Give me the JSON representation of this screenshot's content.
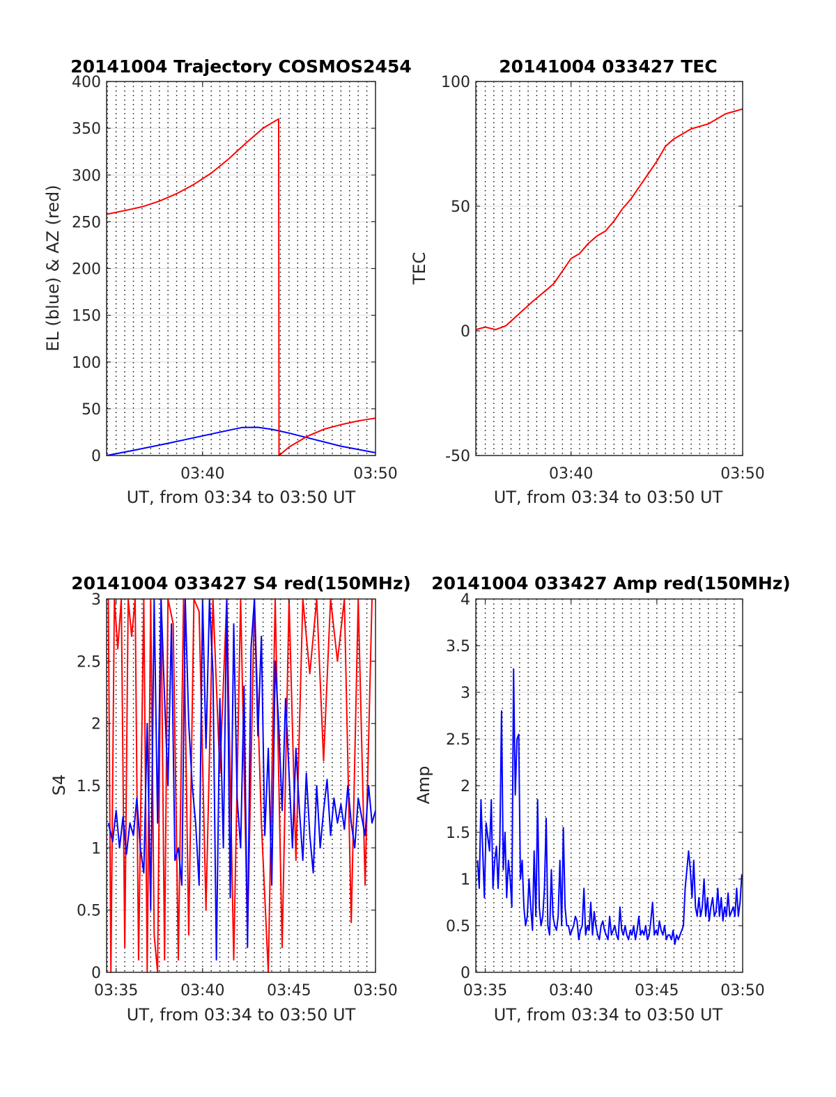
{
  "colors": {
    "el": "#0000ff",
    "az": "#ff0000",
    "tec": "#ff0000",
    "s4_red": "#ff0000",
    "s4_blue": "#0000ff",
    "amp": "#0000ff",
    "grid_h": "#d9d9d9",
    "grid_v": "#000000",
    "axis": "#262626"
  },
  "chart_data": [
    {
      "id": "trajectory",
      "type": "line",
      "title": "20141004 Trajectory COSMOS2454",
      "xlabel": "UT, from 03:34 to 03:50 UT",
      "ylabel": "EL (blue) & AZ (red)",
      "xlim": [
        34.45,
        50
      ],
      "ylim": [
        0,
        400
      ],
      "xticks": [
        40,
        50
      ],
      "xtick_labels": [
        "03:40",
        "03:50"
      ],
      "yticks": [
        0,
        50,
        100,
        150,
        200,
        250,
        300,
        350,
        400
      ],
      "ytick_labels": [
        "0",
        "50",
        "100",
        "150",
        "200",
        "250",
        "300",
        "350",
        "400"
      ],
      "minute_gridlines": [
        34.5,
        35,
        35.5,
        36,
        36.5,
        37,
        37.5,
        38,
        38.5,
        39,
        39.5,
        40,
        40.5,
        41,
        41.5,
        42,
        42.5,
        43,
        43.5,
        44,
        44.5,
        45,
        45.5,
        46,
        46.5,
        47,
        47.5,
        48,
        48.5,
        49,
        49.5
      ],
      "grid": true,
      "series": [
        {
          "name": "EL (blue)",
          "color": "#0000ff",
          "x": [
            34.45,
            36,
            38,
            40,
            41.5,
            42.3,
            43.2,
            44,
            45,
            46.5,
            48,
            50
          ],
          "y": [
            0,
            5.5,
            13,
            21,
            27,
            30,
            30.2,
            28,
            24,
            17,
            10,
            3
          ]
        },
        {
          "name": "AZ (red)",
          "color": "#ff0000",
          "x": [
            34.45,
            35.5,
            36.5,
            37.5,
            38.5,
            39.5,
            40.5,
            41.5,
            42.5,
            43.5,
            44.4,
            44.42,
            45,
            46,
            47,
            48,
            49,
            50
          ],
          "y": [
            258,
            262,
            266,
            272,
            280,
            290,
            302,
            317,
            334,
            350,
            360,
            0,
            9,
            20,
            28,
            33,
            37,
            40
          ]
        }
      ]
    },
    {
      "id": "tec",
      "type": "line",
      "title": "20141004 033427 TEC",
      "xlabel": "UT, from 03:34 to 03:50 UT",
      "ylabel": "TEC",
      "xlim": [
        34.45,
        50
      ],
      "ylim": [
        -50,
        100
      ],
      "xticks": [
        40,
        50
      ],
      "xtick_labels": [
        "03:40",
        "03:50"
      ],
      "yticks": [
        -50,
        0,
        50,
        100
      ],
      "ytick_labels": [
        "-50",
        "0",
        "50",
        "100"
      ],
      "minute_gridlines": [
        34.5,
        35,
        35.5,
        36,
        36.5,
        37,
        37.5,
        38,
        38.5,
        39,
        39.5,
        40,
        40.5,
        41,
        41.5,
        42,
        42.5,
        43,
        43.5,
        44,
        44.5,
        45,
        45.5,
        46,
        46.5,
        47,
        47.5,
        48,
        48.5,
        49,
        49.5
      ],
      "grid": true,
      "series": [
        {
          "name": "TEC",
          "color": "#ff0000",
          "x": [
            34.45,
            35,
            35.6,
            36.2,
            37,
            37.8,
            38.5,
            39,
            39.5,
            40,
            40.5,
            41,
            41.5,
            42,
            42.5,
            43,
            43.5,
            44,
            44.5,
            45,
            45.5,
            46,
            46.5,
            47,
            47.5,
            48,
            48.5,
            49,
            49.5,
            50
          ],
          "y": [
            0.5,
            1.5,
            0.5,
            2,
            7,
            12,
            16,
            19,
            24,
            29,
            31,
            35,
            38,
            40,
            44,
            49,
            53,
            58,
            63,
            68,
            74,
            77,
            79,
            81,
            82,
            83,
            85,
            87,
            88,
            89
          ]
        }
      ]
    },
    {
      "id": "s4",
      "type": "line",
      "title": "20141004 033427 S4 red(150MHz)",
      "xlabel": "UT, from 03:34 to 03:50 UT",
      "ylabel": "S4",
      "xlim": [
        34.45,
        50
      ],
      "ylim": [
        0,
        3
      ],
      "xticks": [
        35,
        40,
        45,
        50
      ],
      "xtick_labels": [
        "03:35",
        "03:40",
        "03:45",
        "03:50"
      ],
      "yticks": [
        0,
        0.5,
        1,
        1.5,
        2,
        2.5,
        3
      ],
      "ytick_labels": [
        "0",
        "0.5",
        "1",
        "1.5",
        "2",
        "2.5",
        "3"
      ],
      "minute_gridlines": [
        34.5,
        35,
        35.5,
        36,
        36.5,
        37,
        37.5,
        38,
        38.5,
        39,
        39.5,
        40,
        40.5,
        41,
        41.5,
        42,
        42.5,
        43,
        43.5,
        44,
        44.5,
        45,
        45.5,
        46,
        46.5,
        47,
        47.5,
        48,
        48.5,
        49,
        49.5
      ],
      "grid": true,
      "series": [
        {
          "name": "red",
          "color": "#ff0000",
          "x": [
            34.55,
            34.7,
            34.9,
            35.1,
            35.3,
            35.5,
            35.7,
            35.9,
            36.1,
            36.3,
            36.6,
            36.8,
            37.0,
            37.2,
            37.4,
            37.6,
            37.8,
            38.0,
            38.3,
            38.6,
            38.9,
            39.2,
            39.5,
            39.8,
            40.2,
            40.6,
            41.0,
            41.4,
            41.8,
            42.2,
            42.6,
            43.0,
            43.4,
            43.8,
            44.2,
            44.6,
            45.0,
            45.4,
            45.8,
            46.2,
            46.6,
            47.0,
            47.4,
            47.8,
            48.2,
            48.6,
            49.0,
            49.4,
            49.8
          ],
          "y": [
            3,
            0,
            3,
            2.6,
            3,
            0.2,
            3,
            2.7,
            3,
            0.1,
            3,
            0,
            3,
            0.3,
            0,
            3,
            0.1,
            3,
            2.8,
            0.1,
            3,
            0.3,
            3,
            2.9,
            0.5,
            3,
            1.6,
            3,
            0.1,
            3,
            0.3,
            3,
            1.2,
            0,
            3,
            0.2,
            3,
            0.9,
            3,
            2.4,
            3,
            1.7,
            3,
            2.5,
            3,
            0.4,
            3,
            0.7,
            3
          ]
        },
        {
          "name": "blue",
          "color": "#0000ff",
          "x": [
            34.55,
            34.8,
            35.0,
            35.2,
            35.4,
            35.6,
            35.8,
            36.0,
            36.2,
            36.4,
            36.6,
            36.8,
            37.0,
            37.2,
            37.4,
            37.6,
            37.8,
            38.0,
            38.2,
            38.4,
            38.6,
            38.8,
            39.0,
            39.2,
            39.4,
            39.6,
            39.8,
            40.0,
            40.2,
            40.4,
            40.6,
            40.8,
            41.0,
            41.2,
            41.4,
            41.6,
            41.8,
            42.0,
            42.2,
            42.4,
            42.6,
            42.8,
            43.0,
            43.2,
            43.4,
            43.6,
            43.8,
            44.0,
            44.2,
            44.4,
            44.6,
            44.8,
            45.0,
            45.2,
            45.4,
            45.6,
            45.8,
            46.0,
            46.2,
            46.4,
            46.6,
            46.8,
            47.0,
            47.2,
            47.4,
            47.6,
            47.8,
            48.0,
            48.2,
            48.4,
            48.6,
            48.8,
            49.0,
            49.2,
            49.4,
            49.6,
            49.8,
            50.0
          ],
          "y": [
            1.2,
            1.05,
            1.3,
            1.0,
            1.25,
            0.95,
            1.2,
            1.1,
            1.4,
            1.0,
            0.8,
            2.0,
            0.5,
            3.0,
            1.2,
            3.0,
            2.2,
            1.5,
            2.8,
            0.9,
            1.0,
            0.7,
            3.0,
            2.0,
            1.5,
            1.2,
            0.7,
            3.0,
            1.8,
            3.0,
            2.4,
            0.1,
            2.2,
            1.0,
            3.0,
            0.6,
            2.8,
            1.4,
            1.0,
            2.3,
            0.2,
            2.6,
            3.0,
            1.9,
            2.7,
            1.1,
            1.8,
            0.7,
            2.5,
            2.0,
            1.3,
            2.2,
            1.6,
            1.0,
            1.8,
            1.3,
            0.9,
            1.6,
            1.1,
            0.8,
            1.5,
            1.0,
            1.3,
            1.55,
            1.1,
            1.4,
            1.2,
            1.35,
            1.15,
            1.5,
            1.2,
            1.0,
            1.4,
            1.25,
            1.1,
            1.5,
            1.2,
            1.3
          ]
        }
      ]
    },
    {
      "id": "amp",
      "type": "line",
      "title": "20141004 033427 Amp red(150MHz)",
      "xlabel": "UT, from 03:34 to 03:50 UT",
      "ylabel": "Amp",
      "xlim": [
        34.45,
        50
      ],
      "ylim": [
        0,
        4
      ],
      "xticks": [
        35,
        40,
        45,
        50
      ],
      "xtick_labels": [
        "03:35",
        "03:40",
        "03:45",
        "03:50"
      ],
      "yticks": [
        0,
        0.5,
        1,
        1.5,
        2,
        2.5,
        3,
        3.5,
        4
      ],
      "ytick_labels": [
        "0",
        "0.5",
        "1",
        "1.5",
        "2",
        "2.5",
        "3",
        "3.5",
        "4"
      ],
      "minute_gridlines": [
        34.5,
        35,
        35.5,
        36,
        36.5,
        37,
        37.5,
        38,
        38.5,
        39,
        39.5,
        40,
        40.5,
        41,
        41.5,
        42,
        42.5,
        43,
        43.5,
        44,
        44.5,
        45,
        45.5,
        46,
        46.5,
        47,
        47.5,
        48,
        48.5,
        49,
        49.5
      ],
      "grid": true,
      "series": [
        {
          "name": "Amp",
          "color": "#0000ff",
          "x": [
            34.55,
            34.65,
            34.75,
            34.85,
            34.95,
            35.05,
            35.15,
            35.25,
            35.35,
            35.45,
            35.55,
            35.65,
            35.75,
            35.85,
            35.95,
            36.05,
            36.15,
            36.25,
            36.35,
            36.45,
            36.55,
            36.65,
            36.75,
            36.85,
            36.95,
            37.05,
            37.15,
            37.25,
            37.35,
            37.45,
            37.55,
            37.65,
            37.75,
            37.85,
            37.95,
            38.05,
            38.15,
            38.25,
            38.35,
            38.45,
            38.55,
            38.65,
            38.75,
            38.85,
            38.95,
            39.05,
            39.15,
            39.25,
            39.35,
            39.45,
            39.55,
            39.65,
            39.75,
            39.85,
            39.95,
            40.05,
            40.15,
            40.25,
            40.35,
            40.45,
            40.55,
            40.65,
            40.75,
            40.85,
            40.95,
            41.05,
            41.15,
            41.25,
            41.35,
            41.45,
            41.55,
            41.65,
            41.75,
            41.85,
            41.95,
            42.05,
            42.15,
            42.25,
            42.35,
            42.45,
            42.55,
            42.65,
            42.75,
            42.85,
            42.95,
            43.05,
            43.15,
            43.25,
            43.35,
            43.45,
            43.55,
            43.65,
            43.75,
            43.85,
            43.95,
            44.05,
            44.15,
            44.25,
            44.35,
            44.45,
            44.55,
            44.65,
            44.75,
            44.85,
            44.95,
            45.05,
            45.15,
            45.25,
            45.35,
            45.45,
            45.55,
            45.65,
            45.75,
            45.85,
            45.95,
            46.05,
            46.15,
            46.25,
            46.35,
            46.45,
            46.55,
            46.65,
            46.75,
            46.85,
            46.95,
            47.05,
            47.15,
            47.25,
            47.35,
            47.45,
            47.55,
            47.65,
            47.75,
            47.85,
            47.95,
            48.05,
            48.15,
            48.25,
            48.35,
            48.45,
            48.55,
            48.65,
            48.75,
            48.85,
            48.95,
            49.05,
            49.15,
            49.25,
            49.35,
            49.45,
            49.55,
            49.65,
            49.75,
            49.85,
            49.95
          ],
          "y": [
            1.2,
            0.9,
            1.85,
            1.3,
            0.8,
            1.6,
            1.45,
            1.3,
            1.85,
            0.9,
            1.2,
            1.35,
            0.9,
            1.4,
            2.8,
            1.1,
            1.5,
            0.8,
            1.2,
            1.0,
            0.7,
            3.25,
            1.9,
            2.5,
            2.55,
            1.0,
            1.2,
            0.7,
            0.5,
            0.6,
            1.0,
            0.7,
            0.45,
            1.3,
            0.6,
            1.85,
            0.7,
            0.5,
            0.6,
            0.9,
            1.65,
            0.5,
            0.4,
            1.1,
            0.6,
            0.5,
            0.45,
            0.6,
            1.2,
            0.5,
            1.55,
            0.7,
            0.5,
            0.5,
            0.4,
            0.45,
            0.5,
            0.6,
            0.55,
            0.35,
            0.45,
            0.5,
            0.9,
            0.4,
            0.5,
            0.45,
            0.75,
            0.4,
            0.65,
            0.5,
            0.4,
            0.35,
            0.5,
            0.55,
            0.45,
            0.4,
            0.35,
            0.6,
            0.4,
            0.45,
            0.5,
            0.4,
            0.35,
            0.7,
            0.45,
            0.4,
            0.5,
            0.4,
            0.35,
            0.45,
            0.4,
            0.5,
            0.35,
            0.45,
            0.6,
            0.4,
            0.45,
            0.4,
            0.5,
            0.35,
            0.4,
            0.55,
            0.75,
            0.4,
            0.45,
            0.4,
            0.55,
            0.45,
            0.4,
            0.5,
            0.35,
            0.4,
            0.4,
            0.35,
            0.45,
            0.3,
            0.4,
            0.35,
            0.4,
            0.45,
            0.5,
            0.9,
            1.1,
            1.3,
            1.1,
            0.8,
            1.2,
            0.7,
            0.6,
            0.8,
            0.6,
            0.7,
            1.0,
            0.6,
            0.8,
            0.55,
            0.7,
            0.8,
            0.6,
            0.65,
            0.9,
            0.6,
            0.8,
            0.55,
            0.7,
            0.6,
            0.85,
            0.6,
            0.65,
            0.7,
            0.6,
            0.9,
            0.6,
            0.75,
            1.05
          ]
        }
      ]
    }
  ]
}
